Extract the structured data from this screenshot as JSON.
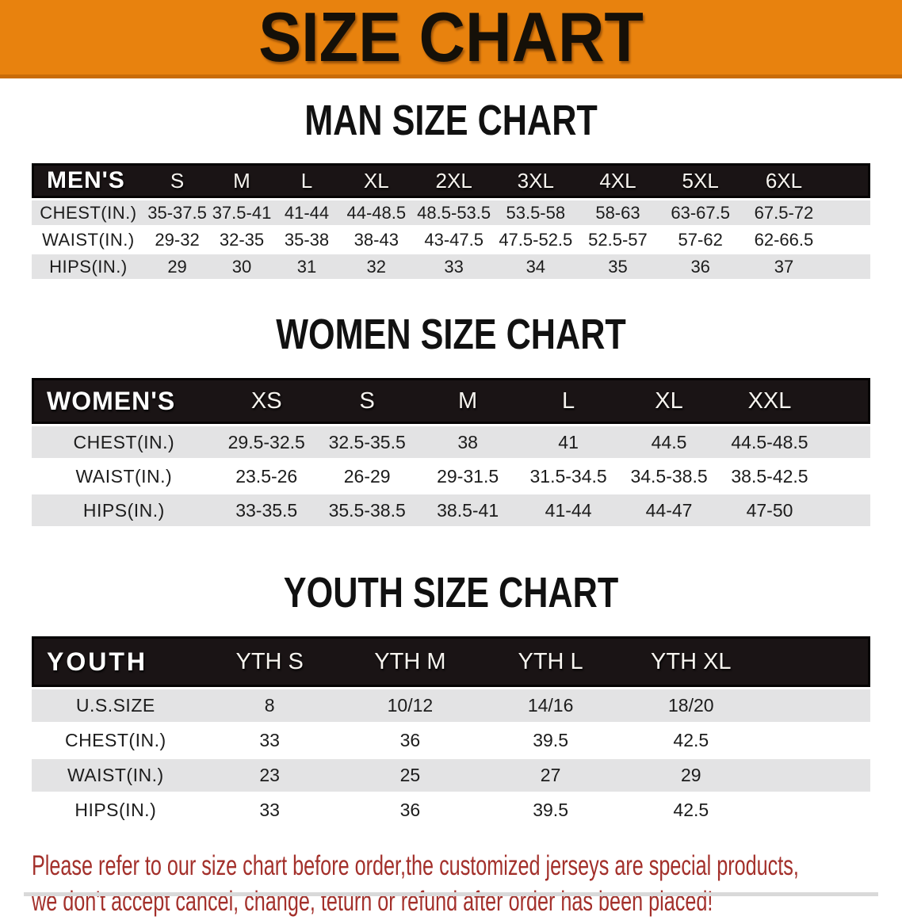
{
  "banner": {
    "title": "SIZE CHART",
    "bg_color": "#E8820E",
    "text_color": "#151008"
  },
  "colors": {
    "header_bar": "#1A1415",
    "row_gray": "#E3E3E4",
    "row_white": "#FFFFFF",
    "note_red": "#A3302B"
  },
  "sections": {
    "men": {
      "heading": "MAN SIZE CHART",
      "table": {
        "label": "MEN'S",
        "columns": [
          "S",
          "M",
          "L",
          "XL",
          "2XL",
          "3XL",
          "4XL",
          "5XL",
          "6XL"
        ],
        "rows": [
          {
            "label": "CHEST(IN.)",
            "values": [
              "35-37.5",
              "37.5-41",
              "41-44",
              "44-48.5",
              "48.5-53.5",
              "53.5-58",
              "58-63",
              "63-67.5",
              "67.5-72"
            ]
          },
          {
            "label": "WAIST(IN.)",
            "values": [
              "29-32",
              "32-35",
              "35-38",
              "38-43",
              "43-47.5",
              "47.5-52.5",
              "52.5-57",
              "57-62",
              "62-66.5"
            ]
          },
          {
            "label": "HIPS(IN.)",
            "values": [
              "29",
              "30",
              "31",
              "32",
              "33",
              "34",
              "35",
              "36",
              "37"
            ]
          }
        ]
      }
    },
    "women": {
      "heading": "WOMEN SIZE CHART",
      "table": {
        "label": "WOMEN'S",
        "columns": [
          "XS",
          "S",
          "M",
          "L",
          "XL",
          "XXL"
        ],
        "rows": [
          {
            "label": "CHEST(IN.)",
            "values": [
              "29.5-32.5",
              "32.5-35.5",
              "38",
              "41",
              "44.5",
              "44.5-48.5"
            ]
          },
          {
            "label": "WAIST(IN.)",
            "values": [
              "23.5-26",
              "26-29",
              "29-31.5",
              "31.5-34.5",
              "34.5-38.5",
              "38.5-42.5"
            ]
          },
          {
            "label": "HIPS(IN.)",
            "values": [
              "33-35.5",
              "35.5-38.5",
              "38.5-41",
              "41-44",
              "44-47",
              "47-50"
            ]
          }
        ]
      }
    },
    "youth": {
      "heading": "YOUTH SIZE CHART",
      "table": {
        "label": "YOUTH",
        "columns": [
          "YTH S",
          "YTH M",
          "YTH L",
          "YTH XL"
        ],
        "rows": [
          {
            "label": "U.S.SIZE",
            "values": [
              "8",
              "10/12",
              "14/16",
              "18/20"
            ]
          },
          {
            "label": "CHEST(IN.)",
            "values": [
              "33",
              "36",
              "39.5",
              "42.5"
            ]
          },
          {
            "label": "WAIST(IN.)",
            "values": [
              "23",
              "25",
              "27",
              "29"
            ]
          },
          {
            "label": "HIPS(IN.)",
            "values": [
              "33",
              "36",
              "39.5",
              "42.5"
            ]
          }
        ]
      }
    }
  },
  "note": {
    "line1": "Please refer to our size chart before order,the customized jerseys are special products,",
    "line2": "we don't accept cancel, change, teturn or refund after order has been placed!"
  }
}
